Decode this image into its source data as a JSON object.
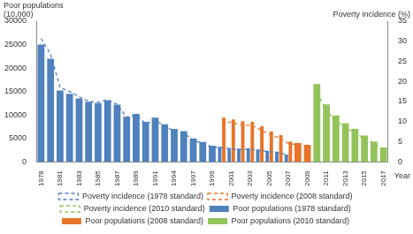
{
  "chart_data": {
    "type": "bar",
    "y_label": "Poor populations\n(10,000)",
    "y2_label": "Poverty incidence (%)",
    "x_label": "Year",
    "categories": [
      "1978",
      null,
      "1981",
      null,
      "1983",
      null,
      "1985",
      null,
      "1987",
      null,
      "1989",
      null,
      "1991",
      null,
      "1994",
      null,
      "1997",
      null,
      "1999",
      null,
      "2001",
      null,
      "2003",
      null,
      "2005",
      null,
      "2007",
      null,
      "2009",
      null,
      "2011",
      null,
      "2013",
      null,
      "2015",
      null,
      "2017"
    ],
    "series": [
      {
        "name": "Poor populations (1978 standard)",
        "type": "bar",
        "color": "#4f81bd",
        "values": [
          25000,
          22000,
          15200,
          14500,
          13500,
          12800,
          12500,
          13100,
          12200,
          9600,
          10200,
          8500,
          9400,
          8000,
          7000,
          6540,
          4962,
          4210,
          3412,
          3209,
          2927,
          2820,
          2900,
          2610,
          2365,
          2148,
          1479,
          null,
          null,
          null,
          null,
          null,
          null,
          null,
          null,
          null,
          null
        ]
      },
      {
        "name": "Poverty incidence (1978 standard)",
        "type": "line",
        "axis": "y2",
        "color": "#4f81bd",
        "line_style": "dashed",
        "values": [
          30.7,
          26.8,
          18.5,
          17.5,
          16.2,
          15.1,
          14.8,
          15.5,
          14.3,
          11.1,
          11.6,
          9.5,
          10.4,
          8.8,
          7.7,
          7.1,
          5.4,
          4.6,
          3.7,
          3.5,
          3.2,
          3.0,
          3.1,
          2.8,
          2.5,
          2.3,
          1.6,
          null,
          null,
          null,
          null,
          null,
          null,
          null,
          null,
          null,
          null
        ]
      },
      {
        "name": "Poor populations (2008 standard)",
        "type": "bar",
        "color": "#e8742a",
        "values": [
          null,
          null,
          null,
          null,
          null,
          null,
          null,
          null,
          null,
          null,
          null,
          null,
          null,
          null,
          null,
          null,
          null,
          null,
          null,
          9422,
          9029,
          8645,
          8517,
          7587,
          6432,
          5698,
          4320,
          4007,
          3597,
          null,
          null,
          null,
          null,
          null,
          null,
          null,
          null
        ]
      },
      {
        "name": "Poverty incidence (2008 standard)",
        "type": "line",
        "axis": "y2",
        "color": "#e8742a",
        "line_style": "dashed",
        "values": [
          null,
          null,
          null,
          null,
          null,
          null,
          null,
          null,
          null,
          null,
          null,
          null,
          null,
          null,
          null,
          null,
          null,
          null,
          null,
          10.2,
          9.8,
          9.2,
          9.1,
          8.1,
          6.8,
          6.0,
          4.6,
          4.2,
          3.8,
          null,
          null,
          null,
          null,
          null,
          null,
          null,
          null
        ]
      },
      {
        "name": "Poor populations (2010 standard)",
        "type": "bar",
        "color": "#92c45a",
        "values": [
          null,
          null,
          null,
          null,
          null,
          null,
          null,
          null,
          null,
          null,
          null,
          null,
          null,
          null,
          null,
          null,
          null,
          null,
          null,
          null,
          null,
          null,
          null,
          null,
          null,
          null,
          null,
          null,
          null,
          16567,
          12238,
          9899,
          8249,
          7017,
          5575,
          4335,
          3046
        ]
      },
      {
        "name": "Poverty incidence (2010 standard)",
        "type": "line",
        "axis": "y2",
        "color": "#92c45a",
        "line_style": "dashed",
        "values": [
          null,
          null,
          null,
          null,
          null,
          null,
          null,
          null,
          null,
          null,
          null,
          null,
          null,
          null,
          null,
          null,
          null,
          null,
          null,
          null,
          null,
          null,
          null,
          null,
          null,
          null,
          null,
          null,
          null,
          17.2,
          12.7,
          10.2,
          8.5,
          7.2,
          5.7,
          4.5,
          3.1
        ]
      }
    ],
    "ylim": [
      0,
      30000
    ],
    "yticks": [
      0,
      5000,
      10000,
      15000,
      20000,
      25000,
      30000
    ],
    "y2lim": [
      0,
      35
    ],
    "y2ticks": [
      0,
      5,
      10,
      15,
      20,
      25,
      30,
      35
    ],
    "grid": false,
    "legend": "bottom"
  }
}
